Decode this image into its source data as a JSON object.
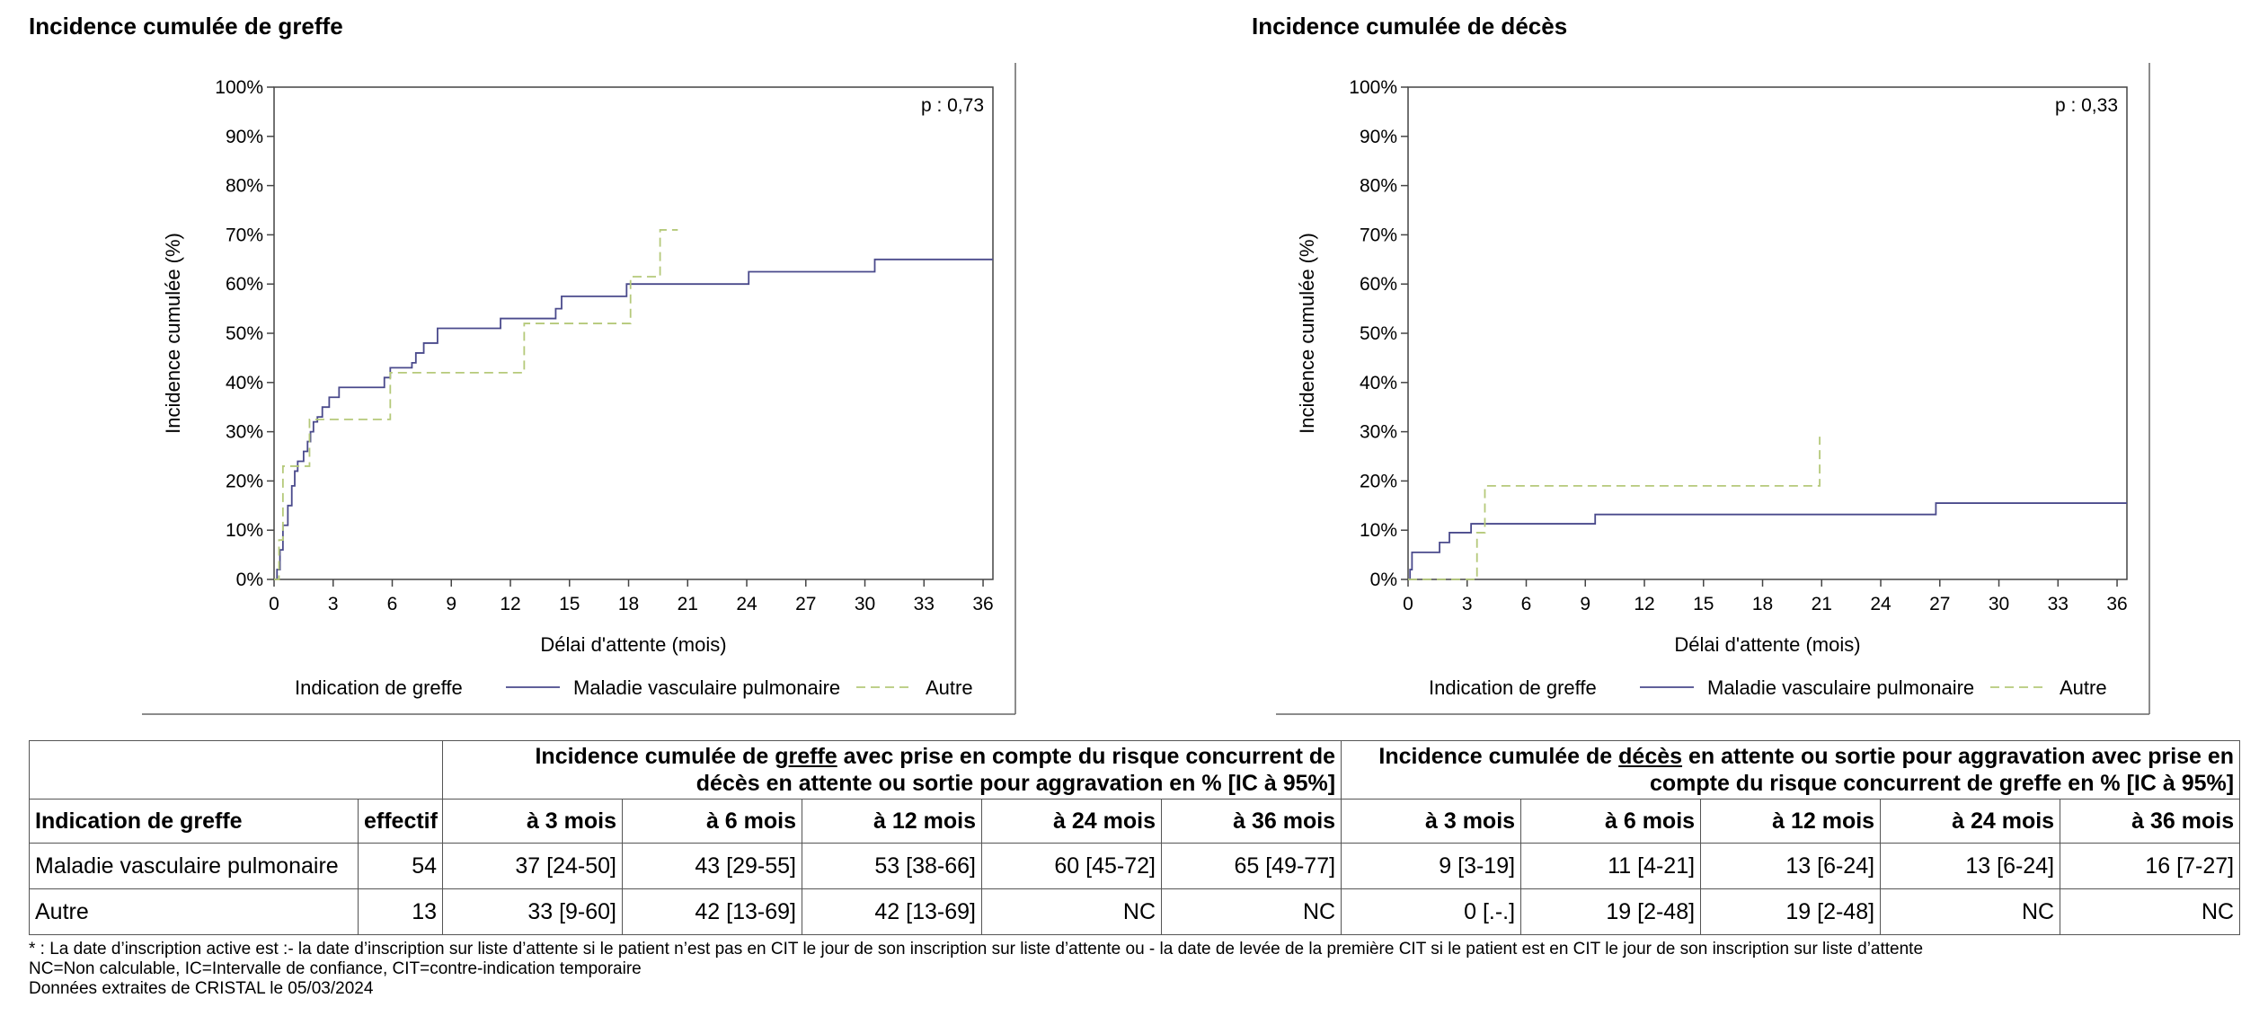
{
  "chart_data": [
    {
      "type": "line",
      "title": "Incidence cumulée de greffe",
      "xlabel": "Délai d'attente (mois)",
      "ylabel": "Incidence cumulée (%)",
      "xlim": [
        0,
        36.5
      ],
      "ylim": [
        0,
        100
      ],
      "xticks": [
        0,
        3,
        6,
        9,
        12,
        15,
        18,
        21,
        24,
        27,
        30,
        33,
        36
      ],
      "yticks": [
        "0%",
        "10%",
        "20%",
        "30%",
        "40%",
        "50%",
        "60%",
        "70%",
        "80%",
        "90%",
        "100%"
      ],
      "annotation": "p : 0,73",
      "legend_title": "Indication de greffe",
      "legend_position": "bottom",
      "series": [
        {
          "name": "Maladie vasculaire pulmonaire",
          "color": "#4a4a8c",
          "style": "solid",
          "step": true,
          "points": [
            [
              0,
              0
            ],
            [
              0.15,
              2
            ],
            [
              0.3,
              6
            ],
            [
              0.45,
              11
            ],
            [
              0.7,
              15
            ],
            [
              0.9,
              19
            ],
            [
              1.05,
              22
            ],
            [
              1.2,
              24
            ],
            [
              1.5,
              26
            ],
            [
              1.7,
              28
            ],
            [
              1.85,
              30
            ],
            [
              2.0,
              32
            ],
            [
              2.2,
              33
            ],
            [
              2.45,
              35
            ],
            [
              2.8,
              37
            ],
            [
              3.3,
              39
            ],
            [
              5.6,
              41
            ],
            [
              5.9,
              43
            ],
            [
              7.0,
              44
            ],
            [
              7.2,
              46
            ],
            [
              7.6,
              48
            ],
            [
              8.3,
              51
            ],
            [
              11.5,
              53
            ],
            [
              14.3,
              55
            ],
            [
              14.6,
              57.5
            ],
            [
              17.9,
              60
            ],
            [
              24.1,
              62.5
            ],
            [
              30.5,
              65
            ],
            [
              36.5,
              65
            ]
          ]
        },
        {
          "name": "Autre",
          "color": "#b5c97a",
          "style": "dashed",
          "step": true,
          "points": [
            [
              0,
              0
            ],
            [
              0.25,
              8
            ],
            [
              0.45,
              23
            ],
            [
              1.8,
              32.5
            ],
            [
              5.9,
              42
            ],
            [
              12.7,
              52
            ],
            [
              18.1,
              61.5
            ],
            [
              19.6,
              71
            ],
            [
              20.5,
              71
            ]
          ]
        }
      ]
    },
    {
      "type": "line",
      "title": "Incidence cumulée de décès",
      "xlabel": "Délai d'attente (mois)",
      "ylabel": "Incidence cumulée (%)",
      "xlim": [
        0,
        36.5
      ],
      "ylim": [
        0,
        100
      ],
      "xticks": [
        0,
        3,
        6,
        9,
        12,
        15,
        18,
        21,
        24,
        27,
        30,
        33,
        36
      ],
      "yticks": [
        "0%",
        "10%",
        "20%",
        "30%",
        "40%",
        "50%",
        "60%",
        "70%",
        "80%",
        "90%",
        "100%"
      ],
      "annotation": "p : 0,33",
      "legend_title": "Indication de greffe",
      "legend_position": "bottom",
      "series": [
        {
          "name": "Maladie vasculaire pulmonaire",
          "color": "#4a4a8c",
          "style": "solid",
          "step": true,
          "points": [
            [
              0,
              0
            ],
            [
              0.1,
              2
            ],
            [
              0.2,
              5.5
            ],
            [
              1.6,
              7.5
            ],
            [
              2.1,
              9.5
            ],
            [
              3.2,
              11.3
            ],
            [
              9.5,
              13.2
            ],
            [
              26.8,
              15.5
            ],
            [
              36.5,
              15.5
            ]
          ]
        },
        {
          "name": "Autre",
          "color": "#b5c97a",
          "style": "dashed",
          "step": true,
          "points": [
            [
              0,
              0
            ],
            [
              3.5,
              9.5
            ],
            [
              3.9,
              19
            ],
            [
              20.9,
              29
            ],
            [
              20.9,
              29
            ]
          ]
        }
      ]
    }
  ],
  "table": {
    "group_greffe_prefix": "Incidence cumulée de ",
    "group_greffe_underlined": "greffe",
    "group_greffe_suffix_1": " avec prise en compte du risque concurrent de",
    "group_greffe_line2": "décès en attente ou sortie pour aggravation en % [IC à 95%]",
    "group_deces_prefix": "Incidence cumulée de ",
    "group_deces_underlined": "décès",
    "group_deces_suffix_1": " en attente ou sortie pour aggravation avec prise en",
    "group_deces_line2": "compte du risque concurrent de greffe en % [IC à 95%]",
    "col_indication": "Indication de greffe",
    "col_effectif": "effectif",
    "col_3": "à 3 mois",
    "col_6": "à 6 mois",
    "col_12": "à 12 mois",
    "col_24": "à 24 mois",
    "col_36": "à 36 mois",
    "rows": [
      {
        "label": "Maladie vasculaire pulmonaire",
        "effectif": "54",
        "greffe": [
          "37 [24-50]",
          "43 [29-55]",
          "53 [38-66]",
          "60 [45-72]",
          "65 [49-77]"
        ],
        "deces": [
          "9 [3-19]",
          "11 [4-21]",
          "13 [6-24]",
          "13 [6-24]",
          "16 [7-27]"
        ]
      },
      {
        "label": "Autre",
        "effectif": "13",
        "greffe": [
          "33 [9-60]",
          "42 [13-69]",
          "42 [13-69]",
          "NC",
          "NC"
        ],
        "deces": [
          "0 [.-.]",
          "19 [2-48]",
          "19 [2-48]",
          "NC",
          "NC"
        ]
      }
    ]
  },
  "footnotes": {
    "line1": "*  : La date d’inscription active est :- la date d’inscription sur liste d’attente si le patient n’est pas en CIT le jour de son inscription sur liste d’attente ou - la date de levée de la première CIT si le patient est en CIT le jour de son inscription sur liste d’attente",
    "line2": "NC=Non calculable, IC=Intervalle de confiance, CIT=contre-indication temporaire",
    "line3": "Données extraites de CRISTAL le 05/03/2024"
  }
}
